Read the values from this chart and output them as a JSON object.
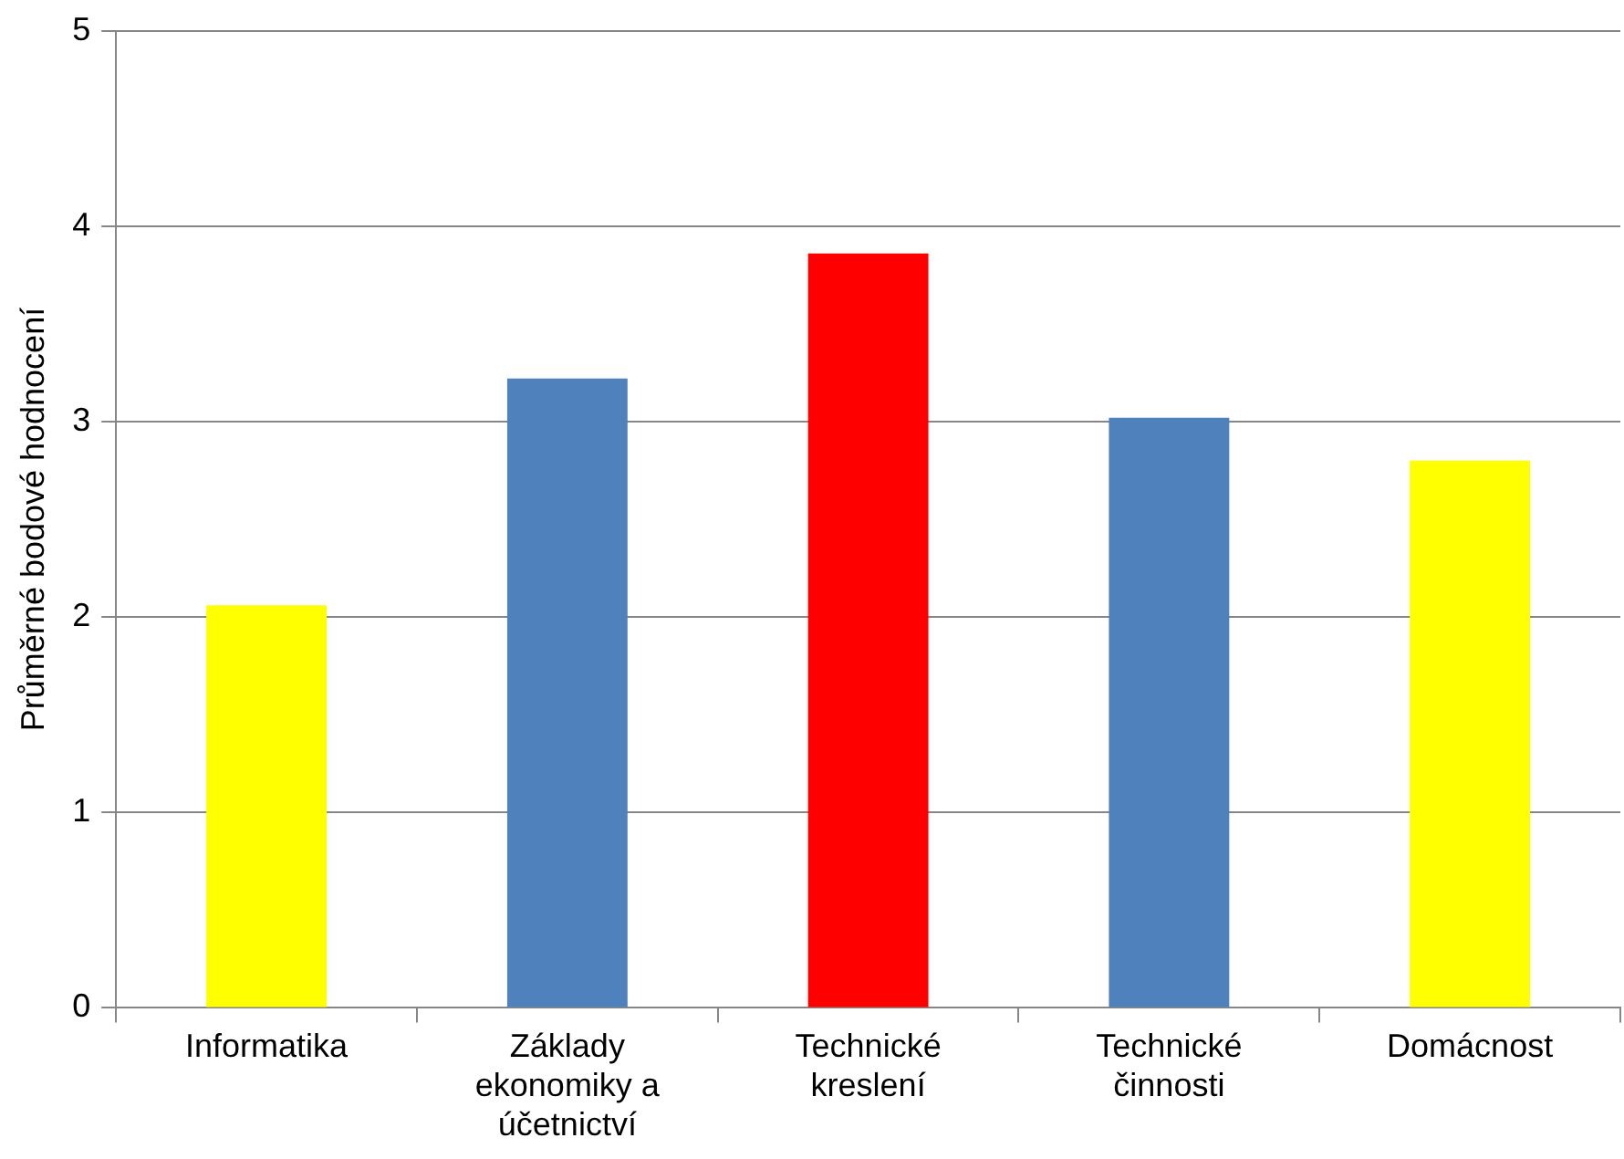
{
  "chart_data": {
    "type": "bar",
    "ylabel": "Průměrné bodové hodnocení",
    "categories": [
      "Informatika",
      "Základy ekonomiky a účetnictví",
      "Technické kreslení",
      "Technické činnosti",
      "Domácnost"
    ],
    "values": [
      2.06,
      3.22,
      3.86,
      3.02,
      2.8
    ],
    "colors": [
      "#ffff00",
      "#4f81bd",
      "#ff0000",
      "#4f81bd",
      "#ffff00"
    ],
    "ylim": [
      0,
      5
    ],
    "yticks": [
      0,
      1,
      2,
      3,
      4,
      5
    ],
    "grid": "y",
    "legend": false
  }
}
